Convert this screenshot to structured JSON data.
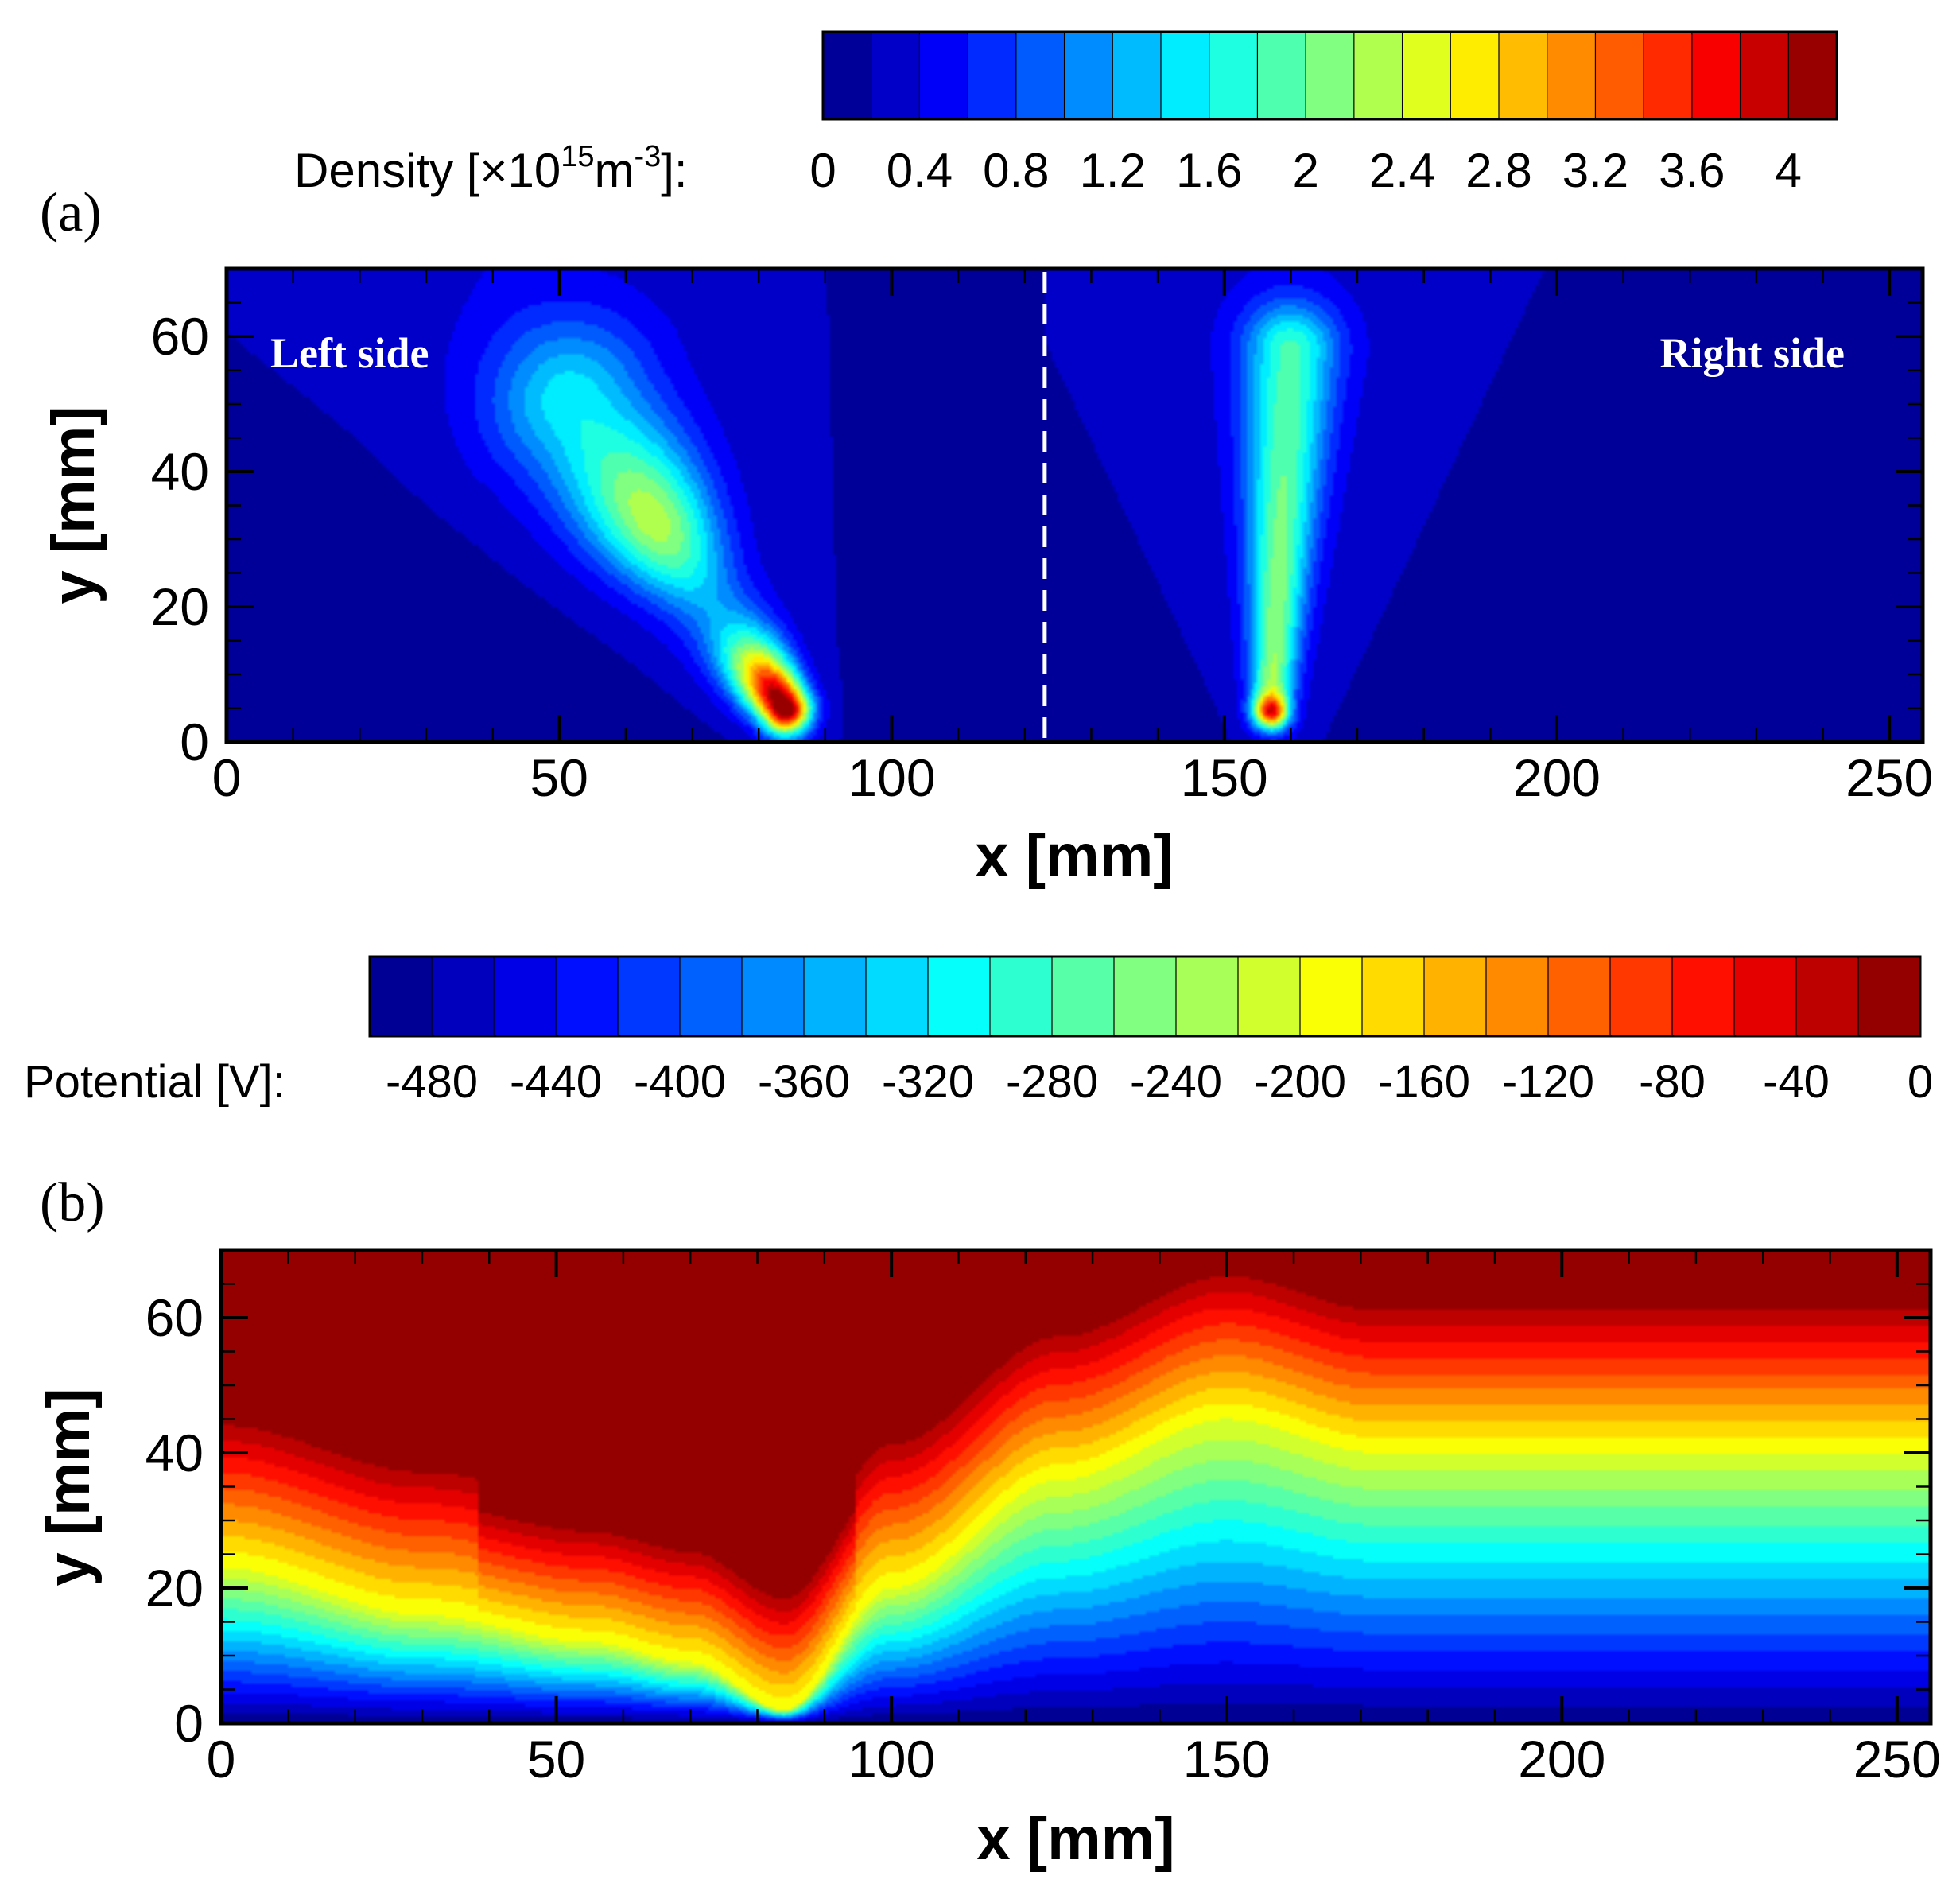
{
  "chart_data": [
    {
      "type": "heatmap",
      "panel_label": "(a)",
      "quantity": "Density",
      "colorbar": {
        "label_prefix": "Density [×10",
        "label_exp1": "15",
        "label_mid": "m",
        "label_exp2": "-3",
        "label_suffix": "]:",
        "ticks": [
          "0",
          "0.4",
          "0.8",
          "1.2",
          "1.6",
          "2",
          "2.4",
          "2.8",
          "3.2",
          "3.6",
          "4"
        ],
        "range": [
          0,
          4.2
        ],
        "tick_start": 0,
        "tick_step": 0.4,
        "levels": 21
      },
      "xlabel": "x [mm]",
      "ylabel": "y [mm]",
      "xlim": [
        0,
        255
      ],
      "ylim": [
        0,
        70
      ],
      "xticks": [
        0,
        50,
        100,
        150,
        200,
        250
      ],
      "yticks": [
        0,
        20,
        40,
        60
      ],
      "annotations": {
        "left": "Left side",
        "right": "Right side",
        "divider_x": 123
      },
      "features": [
        {
          "name": "left-jet",
          "from": [
            84,
            5
          ],
          "to": [
            52,
            50
          ],
          "peak": 3.8
        },
        {
          "name": "right-jet",
          "from": [
            157,
            5
          ],
          "to": [
            160,
            58
          ],
          "peak": 3.6
        }
      ]
    },
    {
      "type": "heatmap",
      "panel_label": "(b)",
      "quantity": "Potential",
      "colorbar": {
        "label": "Potential [V]:",
        "ticks": [
          "-480",
          "-440",
          "-400",
          "-360",
          "-320",
          "-280",
          "-240",
          "-200",
          "-160",
          "-120",
          "-80",
          "-40",
          "0"
        ],
        "range": [
          -500,
          0
        ],
        "tick_start": -480,
        "tick_step": 40,
        "levels": 25
      },
      "xlabel": "x [mm]",
      "ylabel": "y [mm]",
      "xlim": [
        0,
        255
      ],
      "ylim": [
        0,
        70
      ],
      "xticks": [
        0,
        50,
        100,
        150,
        200,
        250
      ],
      "yticks": [
        0,
        20,
        40,
        60
      ],
      "contour_profile": {
        "x": [
          0,
          30,
          55,
          70,
          84,
          100,
          125,
          150,
          172,
          200,
          255
        ],
        "y_at_minus200": [
          23,
          16,
          12,
          9,
          2,
          20,
          36,
          45,
          40,
          40,
          40
        ]
      }
    }
  ]
}
